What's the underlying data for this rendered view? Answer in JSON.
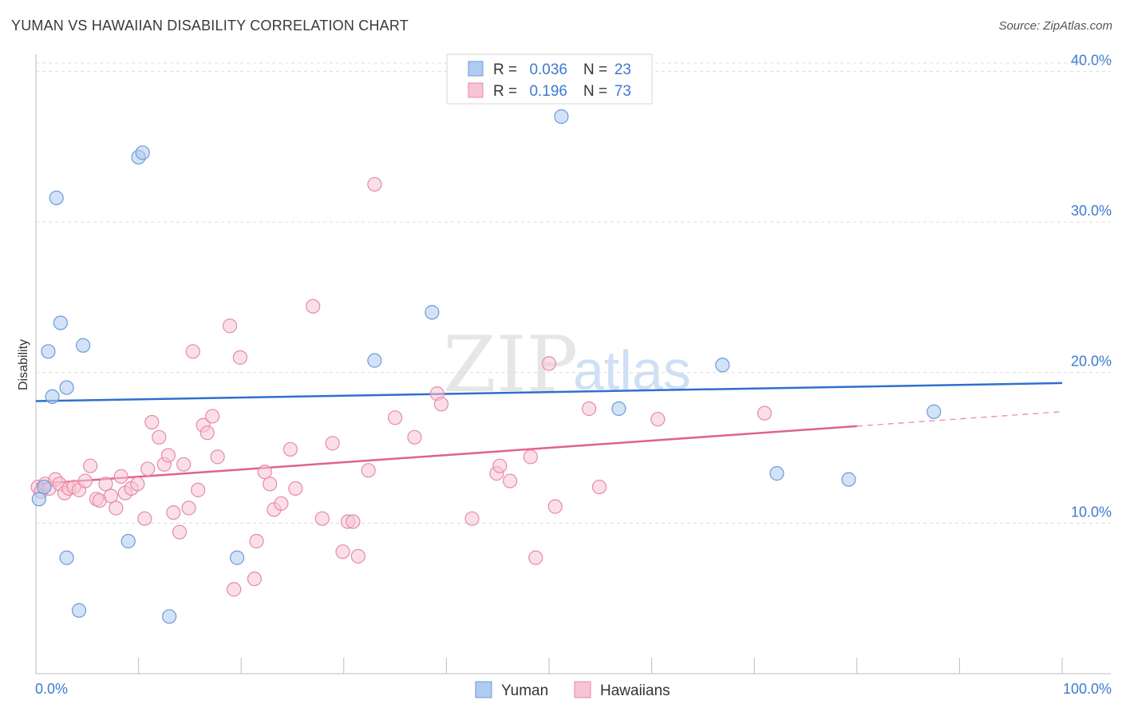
{
  "title": "YUMAN VS HAWAIIAN DISABILITY CORRELATION CHART",
  "source": "Source: ZipAtlas.com",
  "watermark": {
    "part1": "ZIP",
    "part2": "atlas"
  },
  "legend": {
    "rows": [
      {
        "r_label": "R =",
        "r_value": "0.036",
        "n_label": "N =",
        "n_value": "23",
        "color": "#aecbf0",
        "stroke": "#6b9bd9"
      },
      {
        "r_label": "R =",
        "r_value": "0.196",
        "n_label": "N =",
        "n_value": "73",
        "color": "#f7c4d4",
        "stroke": "#e68aa8"
      }
    ]
  },
  "bottom_legend": [
    {
      "label": "Yuman",
      "color": "#aecbf0",
      "stroke": "#6b9bd9"
    },
    {
      "label": "Hawaiians",
      "color": "#f7c4d4",
      "stroke": "#e68aa8"
    }
  ],
  "chart_data": {
    "type": "scatter",
    "title": "YUMAN VS HAWAIIAN DISABILITY CORRELATION CHART",
    "xlabel": "",
    "ylabel": "Disability",
    "xlim": [
      0,
      100
    ],
    "ylim": [
      0,
      40.5
    ],
    "x_tick_labels": [
      "0.0%",
      "100.0%"
    ],
    "y_ticks": [
      10,
      20,
      30,
      40
    ],
    "y_tick_labels": [
      "10.0%",
      "20.0%",
      "30.0%",
      "40.0%"
    ],
    "series": [
      {
        "name": "Yuman",
        "color": "#aecbf0",
        "stroke": "#6b9bd9",
        "line_color": "#2f6fd0",
        "trend": {
          "x0": 0,
          "y0": 18.1,
          "x1": 100,
          "y1": 19.3,
          "dash_from": null
        },
        "points": [
          [
            0.3,
            11.6
          ],
          [
            0.8,
            12.4
          ],
          [
            1.2,
            21.4
          ],
          [
            1.6,
            18.4
          ],
          [
            2.0,
            31.6
          ],
          [
            2.4,
            23.3
          ],
          [
            3.0,
            19.0
          ],
          [
            3.0,
            7.7
          ],
          [
            4.2,
            4.2
          ],
          [
            4.6,
            21.8
          ],
          [
            9.0,
            8.8
          ],
          [
            10.0,
            34.3
          ],
          [
            10.4,
            34.6
          ],
          [
            13.0,
            3.8
          ],
          [
            19.6,
            7.7
          ],
          [
            33.0,
            20.8
          ],
          [
            38.6,
            24.0
          ],
          [
            51.2,
            37.0
          ],
          [
            56.8,
            17.6
          ],
          [
            66.9,
            20.5
          ],
          [
            72.2,
            13.3
          ],
          [
            79.2,
            12.9
          ],
          [
            87.5,
            17.4
          ]
        ]
      },
      {
        "name": "Hawaiians",
        "color": "#f7c4d4",
        "stroke": "#e68aa8",
        "line_color": "#e0628e",
        "trend": {
          "x0": 0,
          "y0": 12.6,
          "x1": 100,
          "y1": 17.4,
          "dash_from": 80
        },
        "points": [
          [
            0.2,
            12.4
          ],
          [
            0.5,
            12.1
          ],
          [
            0.9,
            12.6
          ],
          [
            1.3,
            12.3
          ],
          [
            1.9,
            12.9
          ],
          [
            2.3,
            12.6
          ],
          [
            2.8,
            12.0
          ],
          [
            3.2,
            12.3
          ],
          [
            3.7,
            12.4
          ],
          [
            4.2,
            12.2
          ],
          [
            4.8,
            12.8
          ],
          [
            5.3,
            13.8
          ],
          [
            5.9,
            11.6
          ],
          [
            6.2,
            11.5
          ],
          [
            6.8,
            12.6
          ],
          [
            7.3,
            11.8
          ],
          [
            7.8,
            11.0
          ],
          [
            8.3,
            13.1
          ],
          [
            8.7,
            12.0
          ],
          [
            9.3,
            12.3
          ],
          [
            9.9,
            12.6
          ],
          [
            10.6,
            10.3
          ],
          [
            10.9,
            13.6
          ],
          [
            11.3,
            16.7
          ],
          [
            12.0,
            15.7
          ],
          [
            12.5,
            13.9
          ],
          [
            12.9,
            14.5
          ],
          [
            13.4,
            10.7
          ],
          [
            14.0,
            9.4
          ],
          [
            14.4,
            13.9
          ],
          [
            14.9,
            11.0
          ],
          [
            15.3,
            21.4
          ],
          [
            15.8,
            12.2
          ],
          [
            16.3,
            16.5
          ],
          [
            16.7,
            16.0
          ],
          [
            17.2,
            17.1
          ],
          [
            17.7,
            14.4
          ],
          [
            18.9,
            23.1
          ],
          [
            19.3,
            5.6
          ],
          [
            19.9,
            21.0
          ],
          [
            21.3,
            6.3
          ],
          [
            21.5,
            8.8
          ],
          [
            22.3,
            13.4
          ],
          [
            22.8,
            12.6
          ],
          [
            23.2,
            10.9
          ],
          [
            23.9,
            11.3
          ],
          [
            24.8,
            14.9
          ],
          [
            25.3,
            12.3
          ],
          [
            27.0,
            24.4
          ],
          [
            27.9,
            10.3
          ],
          [
            28.9,
            15.3
          ],
          [
            29.9,
            8.1
          ],
          [
            30.4,
            10.1
          ],
          [
            30.9,
            10.1
          ],
          [
            31.4,
            7.8
          ],
          [
            32.4,
            13.5
          ],
          [
            33.0,
            32.5
          ],
          [
            35.0,
            17.0
          ],
          [
            36.9,
            15.7
          ],
          [
            39.1,
            18.6
          ],
          [
            39.5,
            17.9
          ],
          [
            42.5,
            10.3
          ],
          [
            44.9,
            13.3
          ],
          [
            45.2,
            13.8
          ],
          [
            46.2,
            12.8
          ],
          [
            48.2,
            14.4
          ],
          [
            48.7,
            7.7
          ],
          [
            50.0,
            20.6
          ],
          [
            50.6,
            11.1
          ],
          [
            53.9,
            17.6
          ],
          [
            54.9,
            12.4
          ],
          [
            60.6,
            16.9
          ],
          [
            71.0,
            17.3
          ]
        ]
      }
    ]
  }
}
